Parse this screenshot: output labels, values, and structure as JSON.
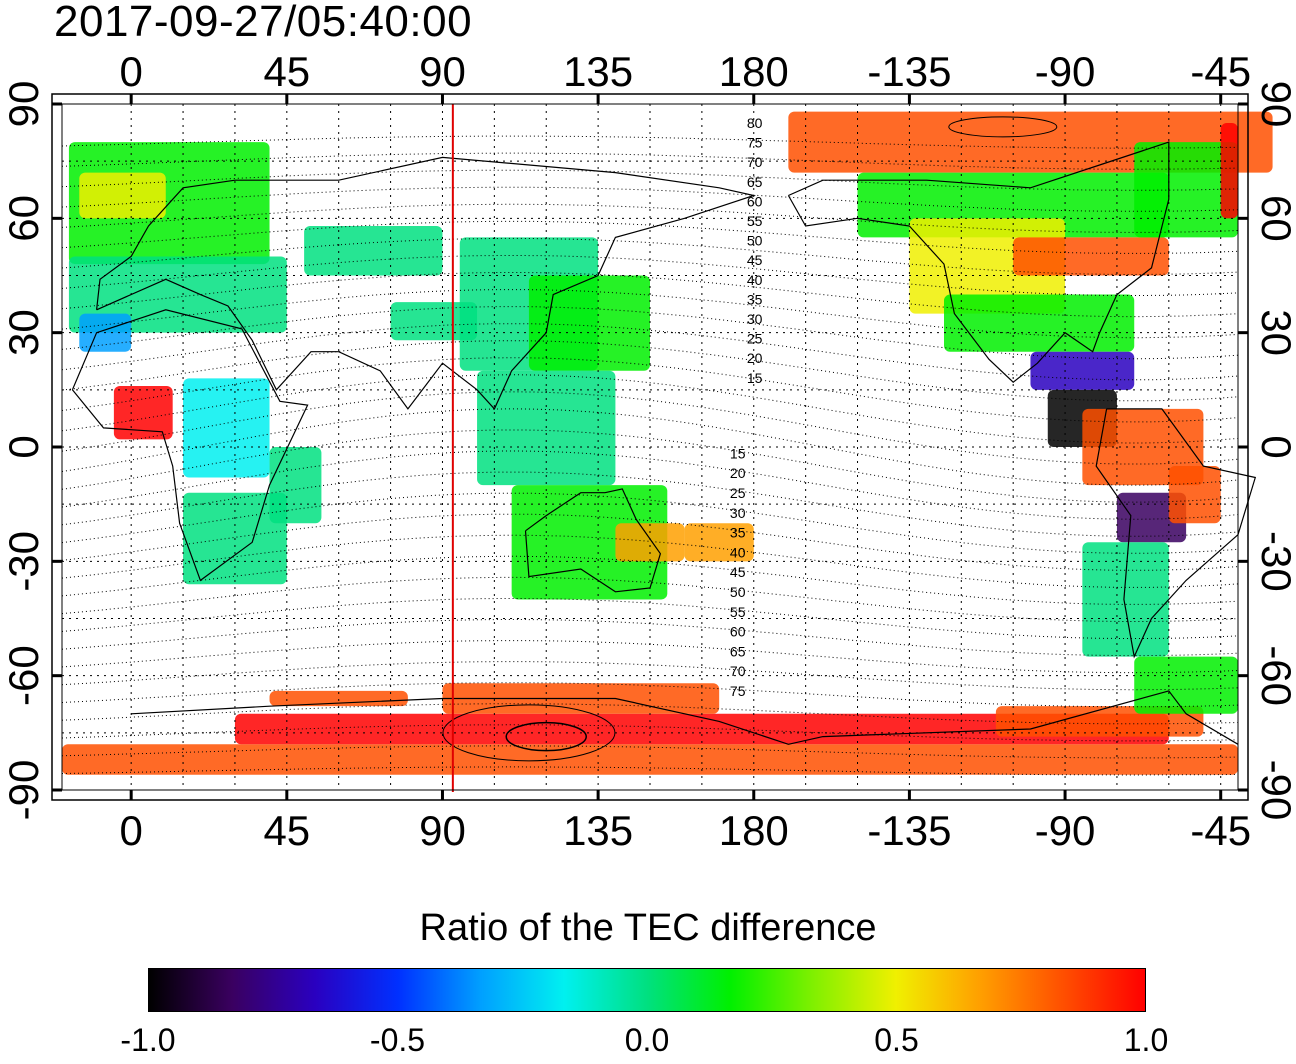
{
  "title": "2017-09-27/05:40:00",
  "map": {
    "projection": "equirectangular",
    "center_longitude": 180,
    "lon_range": [
      -20,
      320
    ],
    "lat_range": [
      -90,
      90
    ],
    "x_tick_labels": [
      "0",
      "45",
      "90",
      "135",
      "180",
      "-135",
      "-90",
      "-45"
    ],
    "y_tick_labels": [
      "90",
      "60",
      "30",
      "0",
      "-30",
      "-60",
      "-90"
    ],
    "grid": "dotted every 15 degrees",
    "marker_longitude": 93,
    "marker_color": "#e00000",
    "magnetic_latitude_labels_north": [
      "80",
      "75",
      "70",
      "65",
      "60",
      "55",
      "50",
      "45",
      "40",
      "35",
      "30",
      "25",
      "20",
      "15"
    ],
    "magnetic_latitude_labels_south": [
      "15",
      "20",
      "25",
      "30",
      "35",
      "40",
      "45",
      "50",
      "55",
      "60",
      "65",
      "70",
      "75"
    ]
  },
  "colorbar": {
    "title": "Ratio of the TEC difference",
    "min": -1.0,
    "max": 1.0,
    "tick_labels": [
      "-1.0",
      "-0.5",
      "0.0",
      "0.5",
      "1.0"
    ],
    "colors": [
      "#000000",
      "#3a0060",
      "#2a00c0",
      "#0030ff",
      "#00a0ff",
      "#00f0f0",
      "#00e080",
      "#00f000",
      "#80f000",
      "#f0f000",
      "#ffa000",
      "#ff5000",
      "#ff0000"
    ]
  }
}
